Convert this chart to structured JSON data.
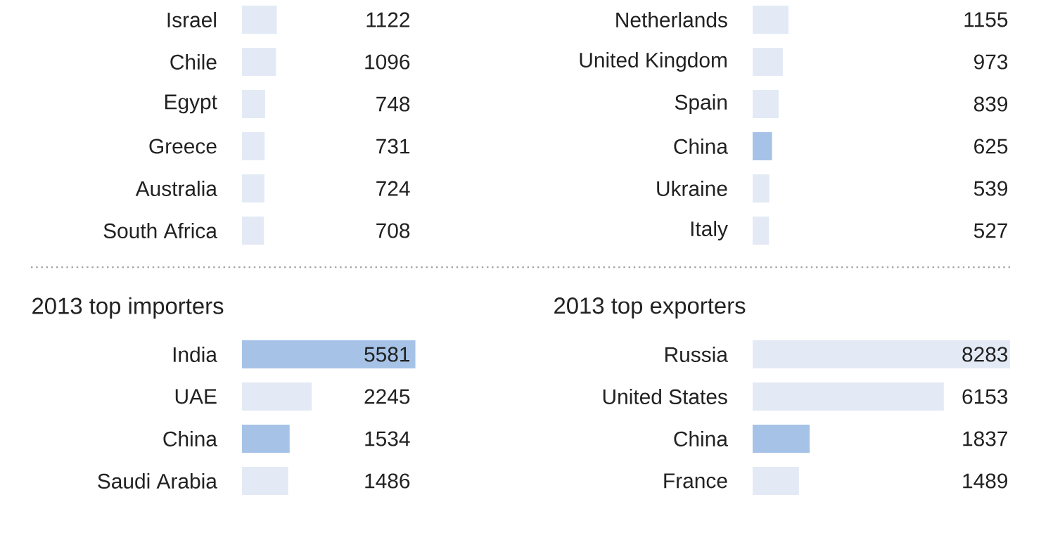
{
  "chart_data": [
    {
      "type": "bar",
      "orientation": "horizontal",
      "data_labels": true,
      "categories": [
        "Israel",
        "Chile",
        "Egypt",
        "Greece",
        "Australia",
        "South Africa"
      ],
      "values": [
        1122,
        1096,
        748,
        731,
        724,
        708
      ],
      "colors": [
        "#e3eaf6",
        "#e3eaf6",
        "#e3eaf6",
        "#e3eaf6",
        "#e3eaf6",
        "#e3eaf6"
      ]
    },
    {
      "type": "bar",
      "orientation": "horizontal",
      "data_labels": true,
      "categories": [
        "Netherlands",
        "United Kingdom",
        "Spain",
        "China",
        "Ukraine",
        "Italy"
      ],
      "values": [
        1155,
        973,
        839,
        625,
        539,
        527
      ],
      "colors": [
        "#e3eaf6",
        "#e3eaf6",
        "#e3eaf6",
        "#a6c3e7",
        "#e3eaf6",
        "#e3eaf6"
      ]
    },
    {
      "type": "bar",
      "orientation": "horizontal",
      "data_labels": true,
      "title": "2013 top importers",
      "categories": [
        "India",
        "UAE",
        "China",
        "Saudi Arabia"
      ],
      "values": [
        5581,
        2245,
        1534,
        1486
      ],
      "colors": [
        "#a6c3e7",
        "#e3eaf6",
        "#a6c3e7",
        "#e3eaf6"
      ]
    },
    {
      "type": "bar",
      "orientation": "horizontal",
      "data_labels": true,
      "title": "2013 top exporters",
      "categories": [
        "Russia",
        "United States",
        "China",
        "France"
      ],
      "values": [
        8283,
        6153,
        1837,
        1489
      ],
      "colors": [
        "#e3eaf6",
        "#e3eaf6",
        "#a6c3e7",
        "#e3eaf6"
      ]
    }
  ]
}
